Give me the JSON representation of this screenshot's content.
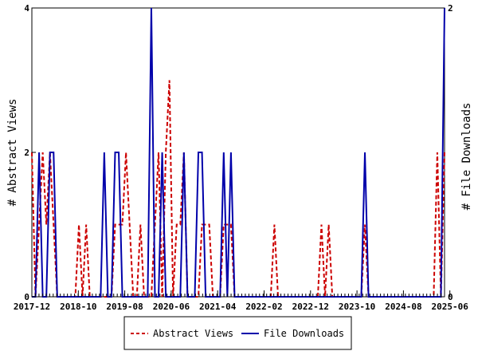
{
  "chart_data": {
    "type": "line",
    "x_labels": [
      "2017-12",
      "2018-10",
      "2019-08",
      "2020-06",
      "2021-04",
      "2022-02",
      "2022-12",
      "2023-10",
      "2024-08",
      "2025-06"
    ],
    "y_left": {
      "label": "# Abstract Views",
      "ticks": [
        "0",
        "2",
        "4"
      ],
      "range": [
        0,
        4
      ]
    },
    "y_right": {
      "label": "# File Downloads",
      "ticks": [
        "0",
        "2"
      ],
      "range": [
        0,
        2
      ]
    },
    "series": [
      {
        "name": "Abstract Views",
        "axis": "left",
        "color": "#cc0000",
        "style": "dashed",
        "values": [
          2,
          0,
          1,
          2,
          1,
          2,
          1,
          0,
          0,
          0,
          0,
          0,
          0,
          1,
          0,
          1,
          0,
          0,
          0,
          0,
          0,
          0,
          0,
          1,
          1,
          1,
          2,
          1,
          0,
          0,
          1,
          0,
          0,
          0,
          1,
          2,
          0,
          2,
          3,
          0,
          1,
          1,
          2,
          0,
          0,
          0,
          0,
          1,
          1,
          1,
          0,
          0,
          0,
          1,
          1,
          1,
          0,
          0,
          0,
          0,
          0,
          0,
          0,
          0,
          0,
          0,
          0,
          1,
          0,
          0,
          0,
          0,
          0,
          0,
          0,
          0,
          0,
          0,
          0,
          0,
          1,
          0,
          1,
          0,
          0,
          0,
          0,
          0,
          0,
          0,
          0,
          0,
          1,
          0,
          0,
          0,
          0,
          0,
          0,
          0,
          0,
          0,
          0,
          0,
          0,
          0,
          0,
          0,
          0,
          0,
          0,
          0,
          2,
          0,
          2
        ]
      },
      {
        "name": "File Downloads",
        "axis": "right",
        "color": "#0000aa",
        "style": "solid",
        "values": [
          0,
          0,
          1,
          0,
          0,
          1,
          1,
          0,
          0,
          0,
          0,
          0,
          0,
          0,
          0,
          0,
          0,
          0,
          0,
          0,
          1,
          0,
          0,
          1,
          1,
          0,
          0,
          0,
          0,
          0,
          0,
          0,
          0,
          2,
          0,
          0,
          1,
          0,
          0,
          0,
          0,
          0,
          1,
          0,
          0,
          0,
          1,
          1,
          0,
          0,
          0,
          0,
          0,
          1,
          0,
          1,
          0,
          0,
          0,
          0,
          0,
          0,
          0,
          0,
          0,
          0,
          0,
          0,
          0,
          0,
          0,
          0,
          0,
          0,
          0,
          0,
          0,
          0,
          0,
          0,
          0,
          0,
          0,
          0,
          0,
          0,
          0,
          0,
          0,
          0,
          0,
          0,
          1,
          0,
          0,
          0,
          0,
          0,
          0,
          0,
          0,
          0,
          0,
          0,
          0,
          0,
          0,
          0,
          0,
          0,
          0,
          0,
          0,
          0,
          2
        ]
      }
    ],
    "legend": [
      "Abstract Views",
      "File Downloads"
    ],
    "legend_position": "bottom-center",
    "grid": false
  }
}
